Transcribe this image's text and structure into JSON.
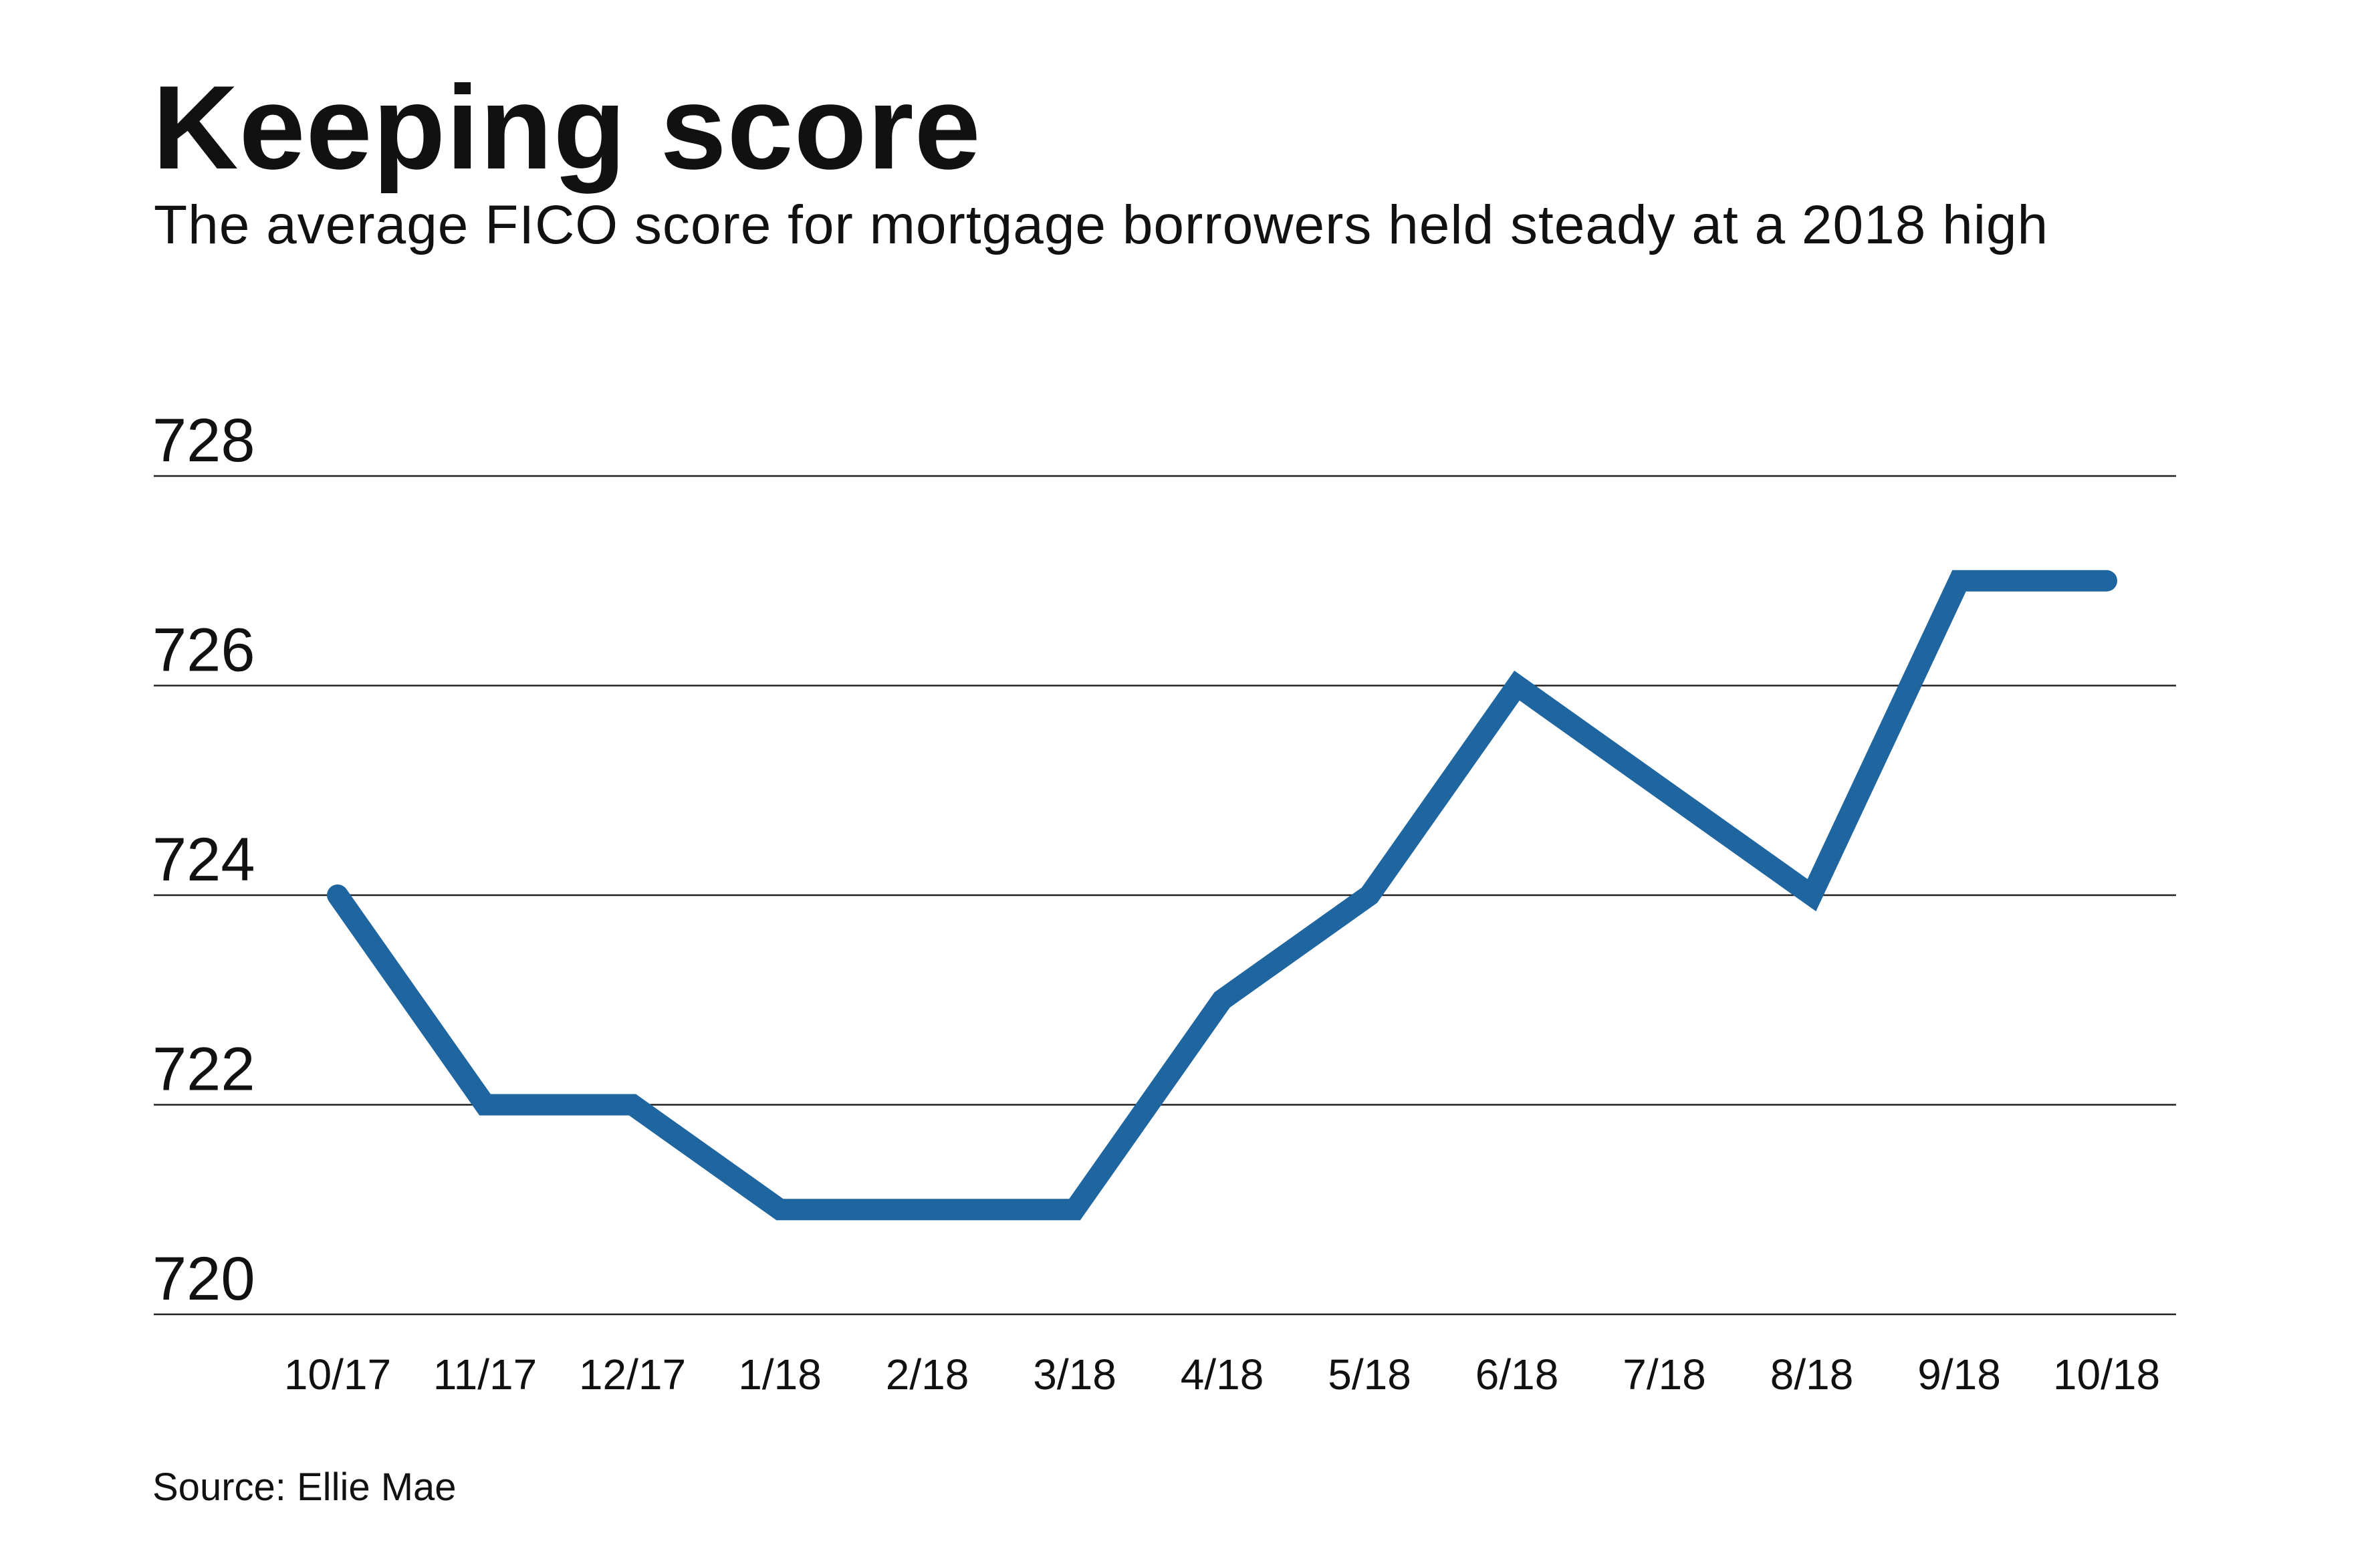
{
  "title": "Keeping score",
  "subtitle": "The average FICO score for mortgage borrowers held steady at a 2018 high",
  "source": "Source: Ellie Mae",
  "colors": {
    "line": "#1f66a1",
    "grid": "#222222",
    "text": "#111111"
  },
  "chart_data": {
    "type": "line",
    "title": "Keeping score",
    "subtitle": "The average FICO score for mortgage borrowers held steady at a 2018 high",
    "xlabel": "",
    "ylabel": "",
    "categories": [
      "10/17",
      "11/17",
      "12/17",
      "1/18",
      "2/18",
      "3/18",
      "4/18",
      "5/18",
      "6/18",
      "7/18",
      "8/18",
      "9/18",
      "10/18"
    ],
    "series": [
      {
        "values": [
          724,
          722,
          722,
          721,
          721,
          721,
          723,
          724,
          726,
          725,
          724,
          727,
          727
        ]
      }
    ],
    "ylim": [
      720,
      728
    ],
    "yticks": [
      728,
      726,
      724,
      722,
      720
    ],
    "grid": "horizontal",
    "legend": "none"
  }
}
